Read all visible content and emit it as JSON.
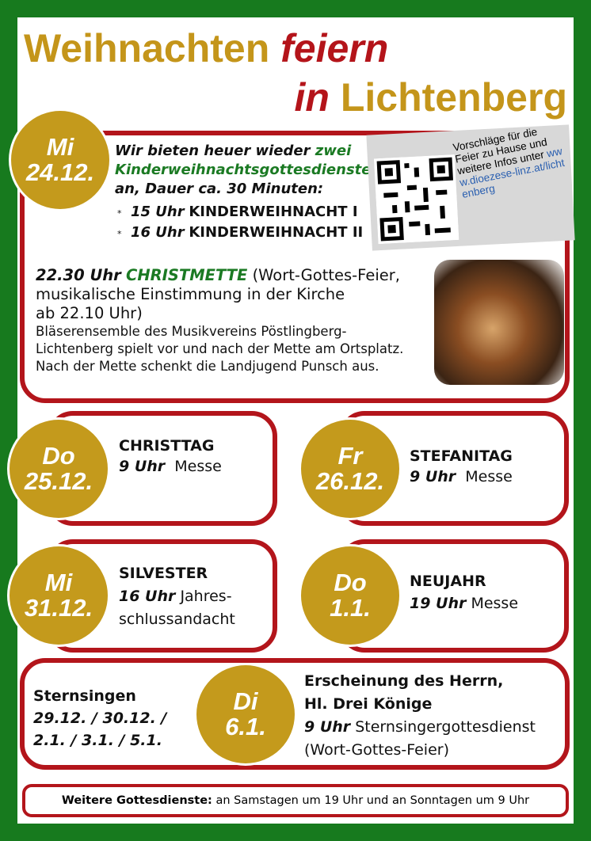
{
  "title": {
    "part1": "Weihnachten",
    "part2": "feiern",
    "part3": "in",
    "part4": "Lichtenberg"
  },
  "qr": {
    "text": "Vorschläge für die Feier zu Hause und weitere Infos unter",
    "link": "www.dioezese-linz.at/lichtenberg"
  },
  "christmas_eve": {
    "day": "Mi",
    "date": "24.12.",
    "intro_1": "Wir bieten heuer wieder",
    "intro_2": "zwei",
    "intro_3": "Kinderweihnachtsgottesdienste",
    "intro_4": "an, Dauer ca. 30 Minuten:",
    "items": [
      {
        "time": "15 Uhr",
        "name": "KINDERWEIHNACHT I"
      },
      {
        "time": "16 Uhr",
        "name": "KINDERWEIHNACHT II"
      }
    ],
    "mette_time": "22.30 Uhr",
    "mette_name": "CHRISTMETTE",
    "mette_lines": [
      "(Wort-Gottes-Feier,",
      "musikalische Einstimmung in der Kirche",
      "ab 22.10 Uhr)"
    ],
    "extra_lines": [
      "Bläserensemble des Musikvereins Pöstlingberg-",
      "Lichtenberg spielt vor und nach der Mette am Ortsplatz.",
      "Nach der Mette schenkt die Landjugend Punsch aus."
    ]
  },
  "events": [
    {
      "day": "Do",
      "date": "25.12.",
      "name": "CHRISTTAG",
      "time": "9 Uhr",
      "lines": [
        "Messe"
      ]
    },
    {
      "day": "Fr",
      "date": "26.12.",
      "name": "STEFANITAG",
      "time": "9 Uhr",
      "lines": [
        "Messe"
      ]
    },
    {
      "day": "Mi",
      "date": "31.12.",
      "name": "SILVESTER",
      "time": "16 Uhr",
      "lines": [
        "Jahres-",
        "schlussandacht"
      ]
    },
    {
      "day": "Do",
      "date": "1.1.",
      "name": "NEUJAHR",
      "time": "19 Uhr",
      "lines": [
        "Messe"
      ]
    }
  ],
  "epiphany": {
    "label": "Sternsingen",
    "dates": [
      "29.12. / 30.12. /",
      "2.1. / 3.1. / 5.1."
    ],
    "day": "Di",
    "date": "6.1.",
    "name_1": "Erscheinung des Herrn,",
    "name_2": "Hl. Drei Könige",
    "time": "9 Uhr",
    "service": "Sternsingergottesdienst",
    "note": "(Wort-Gottes-Feier)"
  },
  "footer": {
    "label": "Weitere Gottesdienste:",
    "text": "an Samstagen um 19 Uhr und an Sonntagen um 9 Uhr"
  }
}
